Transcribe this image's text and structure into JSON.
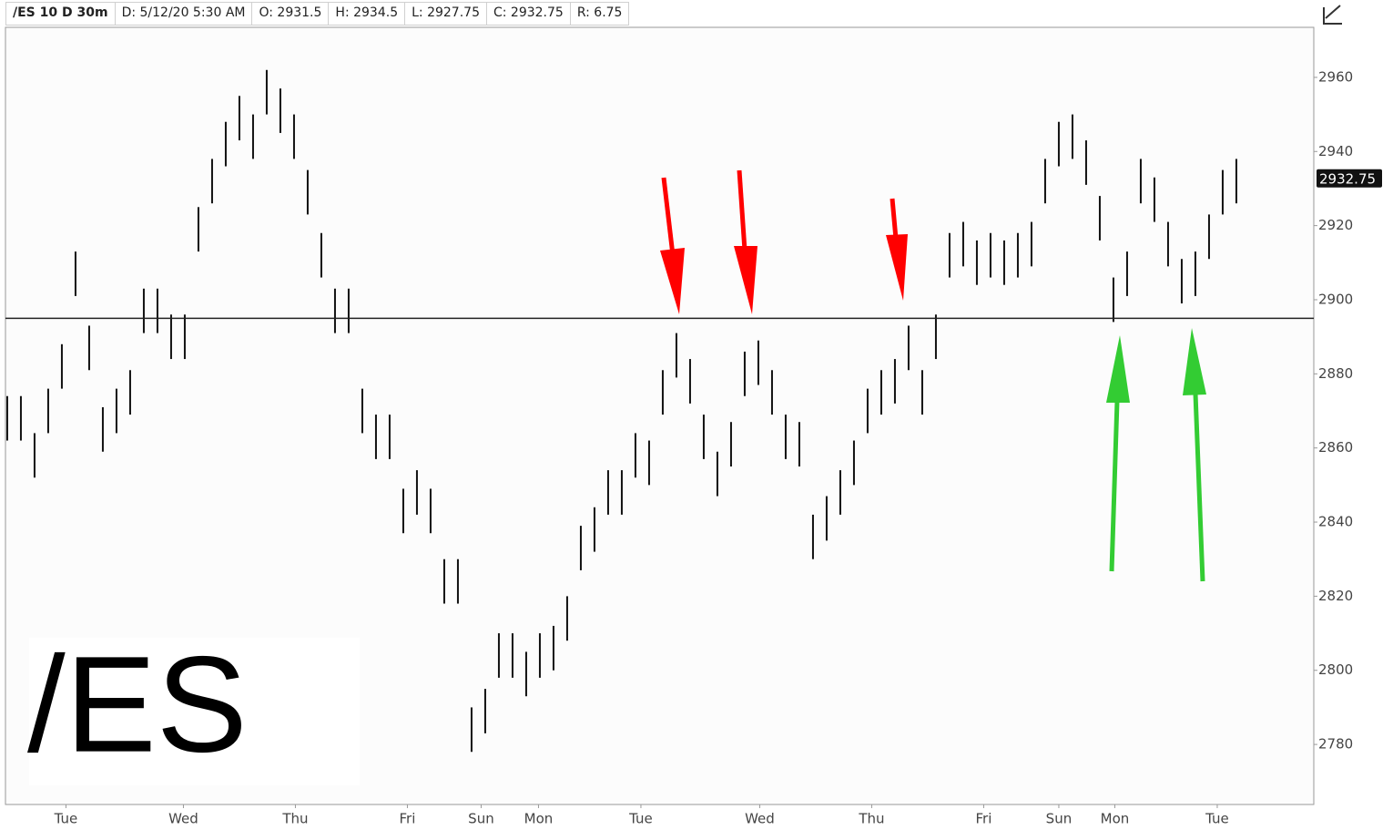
{
  "header": [
    "/ES 10 D 30m",
    "D: 5/12/20 5:30 AM",
    "O: 2931.5",
    "H: 2934.5",
    "L: 2927.75",
    "C: 2932.75",
    "R: 6.75"
  ],
  "chart_data": {
    "type": "ohlc",
    "watermark": "/ES",
    "color": "#111111",
    "high": [
      2874,
      2874,
      2864,
      2876,
      2888,
      2913,
      2893,
      2871,
      2876,
      2881,
      2903,
      2903,
      2896,
      2896,
      2925,
      2938,
      2948,
      2955,
      2950,
      2962,
      2957,
      2950,
      2935,
      2918,
      2903,
      2903,
      2876,
      2869,
      2869,
      2849,
      2854,
      2849,
      2830,
      2830,
      2790,
      2795,
      2810,
      2810,
      2805,
      2810,
      2812,
      2820,
      2839,
      2844,
      2854,
      2854,
      2864,
      2862,
      2881,
      2891,
      2884,
      2869,
      2859,
      2867,
      2886,
      2889,
      2881,
      2869,
      2867,
      2842,
      2847,
      2854,
      2862,
      2876,
      2881,
      2884,
      2893,
      2881,
      2896,
      2918,
      2921,
      2916,
      2918,
      2916,
      2918,
      2921,
      2938,
      2948,
      2950,
      2943,
      2928,
      2906,
      2913,
      2938,
      2933,
      2921,
      2911,
      2913,
      2923,
      2935,
      2938
    ],
    "low": [
      2862,
      2862,
      2852,
      2864,
      2876,
      2901,
      2881,
      2859,
      2864,
      2869,
      2891,
      2891,
      2884,
      2884,
      2913,
      2926,
      2936,
      2943,
      2938,
      2950,
      2945,
      2938,
      2923,
      2906,
      2891,
      2891,
      2864,
      2857,
      2857,
      2837,
      2842,
      2837,
      2818,
      2818,
      2778,
      2783,
      2798,
      2798,
      2793,
      2798,
      2800,
      2808,
      2827,
      2832,
      2842,
      2842,
      2852,
      2850,
      2869,
      2879,
      2872,
      2857,
      2847,
      2855,
      2874,
      2877,
      2869,
      2857,
      2855,
      2830,
      2835,
      2842,
      2850,
      2864,
      2869,
      2872,
      2881,
      2869,
      2884,
      2906,
      2909,
      2904,
      2906,
      2904,
      2906,
      2909,
      2926,
      2936,
      2938,
      2931,
      2916,
      2894,
      2901,
      2926,
      2921,
      2909,
      2899,
      2901,
      2911,
      2923,
      2926
    ],
    "xlim": [
      -0.13,
      95.67
    ],
    "xticks": [
      {
        "value": 4.3,
        "label": "Tue"
      },
      {
        "value": 12.9,
        "label": "Wed"
      },
      {
        "value": 21.1,
        "label": "Thu"
      },
      {
        "value": 29.3,
        "label": "Fri"
      },
      {
        "value": 34.7,
        "label": "Sun"
      },
      {
        "value": 38.9,
        "label": "Mon"
      },
      {
        "value": 46.4,
        "label": "Tue"
      },
      {
        "value": 55.1,
        "label": "Wed"
      },
      {
        "value": 63.3,
        "label": "Thu"
      },
      {
        "value": 71.5,
        "label": "Fri"
      },
      {
        "value": 77,
        "label": "Sun"
      },
      {
        "value": 81.1,
        "label": "Mon"
      },
      {
        "value": 88.6,
        "label": "Tue"
      }
    ],
    "ylim": [
      2763.8,
      2973.5
    ],
    "yticks": [
      2780,
      2800,
      2820,
      2840,
      2860,
      2880,
      2900,
      2920,
      2940,
      2960
    ],
    "hline": 2895,
    "last_price": 2932.75
  }
}
